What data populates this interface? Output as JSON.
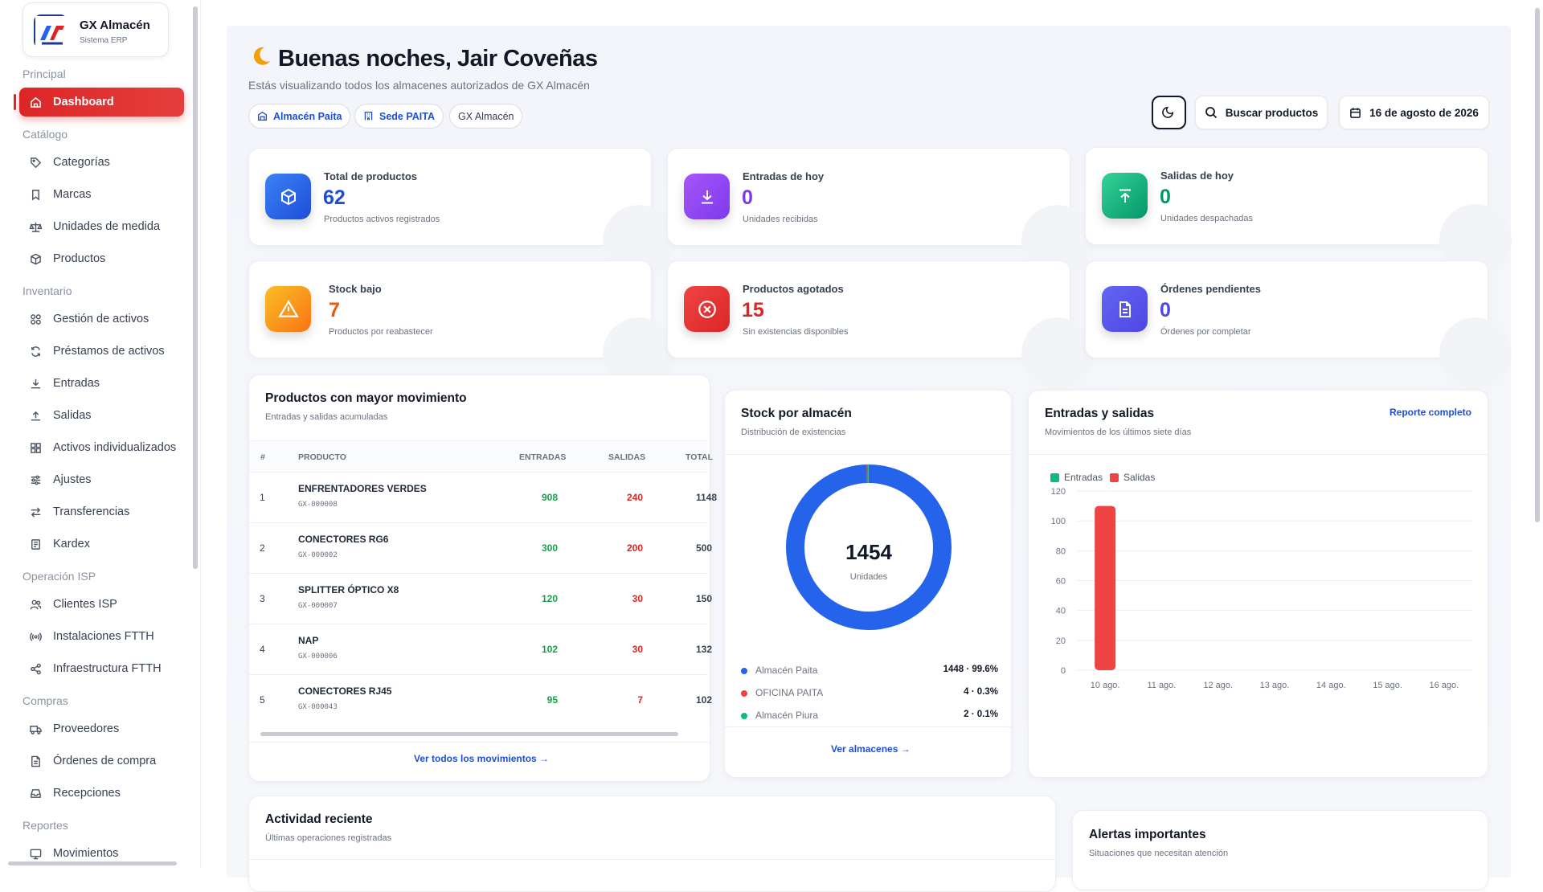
{
  "app": {
    "name": "GX Almacén",
    "subtitle": "Sistema ERP"
  },
  "sidebar": {
    "sections": {
      "principal": "Principal",
      "catalogo": "Catálogo",
      "inventario": "Inventario",
      "operacion": "Operación ISP",
      "compras": "Compras",
      "reportes": "Reportes"
    },
    "items": {
      "dashboard": "Dashboard",
      "categorias": "Categorías",
      "marcas": "Marcas",
      "unidades": "Unidades de medida",
      "productos": "Productos",
      "gestion": "Gestión de activos",
      "prestamos": "Préstamos de activos",
      "entradas": "Entradas",
      "salidas": "Salidas",
      "activos_ind": "Activos individualizados",
      "ajustes": "Ajustes",
      "transferencias": "Transferencias",
      "kardex": "Kardex",
      "clientes": "Clientes ISP",
      "instalaciones": "Instalaciones FTTH",
      "infraestructura": "Infraestructura FTTH",
      "proveedores": "Proveedores",
      "ordenes": "Órdenes de compra",
      "recepciones": "Recepciones",
      "movimientos": "Movimientos"
    }
  },
  "header": {
    "greeting": "Buenas noches, Jair Coveñas",
    "subtitle": "Estás visualizando todos los almacenes autorizados de GX Almacén",
    "chips": [
      "Almacén Paita",
      "Sede PAITA",
      "GX Almacén"
    ],
    "search_label": "Buscar productos",
    "date": "16 de agosto de 2026"
  },
  "stats": [
    {
      "label": "Total de productos",
      "value": "62",
      "sub": "Productos activos registrados",
      "color": "#2563eb"
    },
    {
      "label": "Entradas de hoy",
      "value": "0",
      "sub": "Unidades recibidas",
      "color": "#7c3aed"
    },
    {
      "label": "Salidas de hoy",
      "value": "0",
      "sub": "Unidades despachadas",
      "color": "#10b981"
    },
    {
      "label": "Stock bajo",
      "value": "7",
      "sub": "Productos por reabastecer",
      "color": "#f59e0b"
    },
    {
      "label": "Productos agotados",
      "value": "15",
      "sub": "Sin existencias disponibles",
      "color": "#dc2626"
    },
    {
      "label": "Órdenes pendientes",
      "value": "0",
      "sub": "Órdenes por completar",
      "color": "#4f46e5"
    }
  ],
  "top_products": {
    "title": "Productos con mayor movimiento",
    "subtitle": "Entradas y salidas acumuladas",
    "headers": {
      "num": "#",
      "product": "PRODUCTO",
      "in": "ENTRADAS",
      "out": "SALIDAS",
      "total": "TOTAL"
    },
    "rows": [
      {
        "n": "1",
        "name": "ENFRENTADORES VERDES",
        "code": "GX-000008",
        "in": "908",
        "out": "240",
        "total": "1148"
      },
      {
        "n": "2",
        "name": "CONECTORES RG6",
        "code": "GX-000002",
        "in": "300",
        "out": "200",
        "total": "500"
      },
      {
        "n": "3",
        "name": "SPLITTER ÓPTICO X8",
        "code": "GX-000007",
        "in": "120",
        "out": "30",
        "total": "150"
      },
      {
        "n": "4",
        "name": "NAP",
        "code": "GX-000006",
        "in": "102",
        "out": "30",
        "total": "132"
      },
      {
        "n": "5",
        "name": "CONECTORES RJ45",
        "code": "GX-000043",
        "in": "95",
        "out": "7",
        "total": "102"
      }
    ],
    "link": "Ver todos los movimientos →"
  },
  "stock": {
    "title": "Stock por almacén",
    "subtitle": "Distribución de existencias",
    "total": "1454",
    "total_label": "Unidades",
    "link": "Ver almacenes →"
  },
  "chart_data": {
    "type": "bar",
    "title": "Entradas y salidas",
    "subtitle": "Movimientos de los últimos siete días",
    "link": "Reporte completo",
    "categories": [
      "10 ago.",
      "11 ago.",
      "12 ago.",
      "13 ago.",
      "14 ago.",
      "15 ago.",
      "16 ago."
    ],
    "series": [
      {
        "name": "Entradas",
        "color": "#10b981",
        "values": [
          0,
          0,
          0,
          0,
          0,
          0,
          0
        ]
      },
      {
        "name": "Salidas",
        "color": "#ef4444",
        "values": [
          110,
          0,
          0,
          0,
          0,
          0,
          0
        ]
      }
    ],
    "ylim": [
      0,
      120
    ],
    "yticks": [
      "0",
      "20",
      "40",
      "60",
      "80",
      "100",
      "120"
    ],
    "legend": "top-left",
    "grid": true
  },
  "stock_chart": {
    "type": "pie",
    "series": [
      {
        "name": "Almacén Paita",
        "value": 1448,
        "label": "1448 · 99.6%",
        "color": "#2563eb"
      },
      {
        "name": "OFICINA PAITA",
        "value": 4,
        "label": "4 · 0.3%",
        "color": "#ef4444"
      },
      {
        "name": "Almacén Piura",
        "value": 2,
        "label": "2 · 0.1%",
        "color": "#10b981"
      }
    ]
  },
  "activity": {
    "title": "Actividad reciente",
    "subtitle": "Últimas operaciones registradas"
  },
  "alerts": {
    "title": "Alertas importantes",
    "subtitle": "Situaciones que necesitan atención"
  }
}
